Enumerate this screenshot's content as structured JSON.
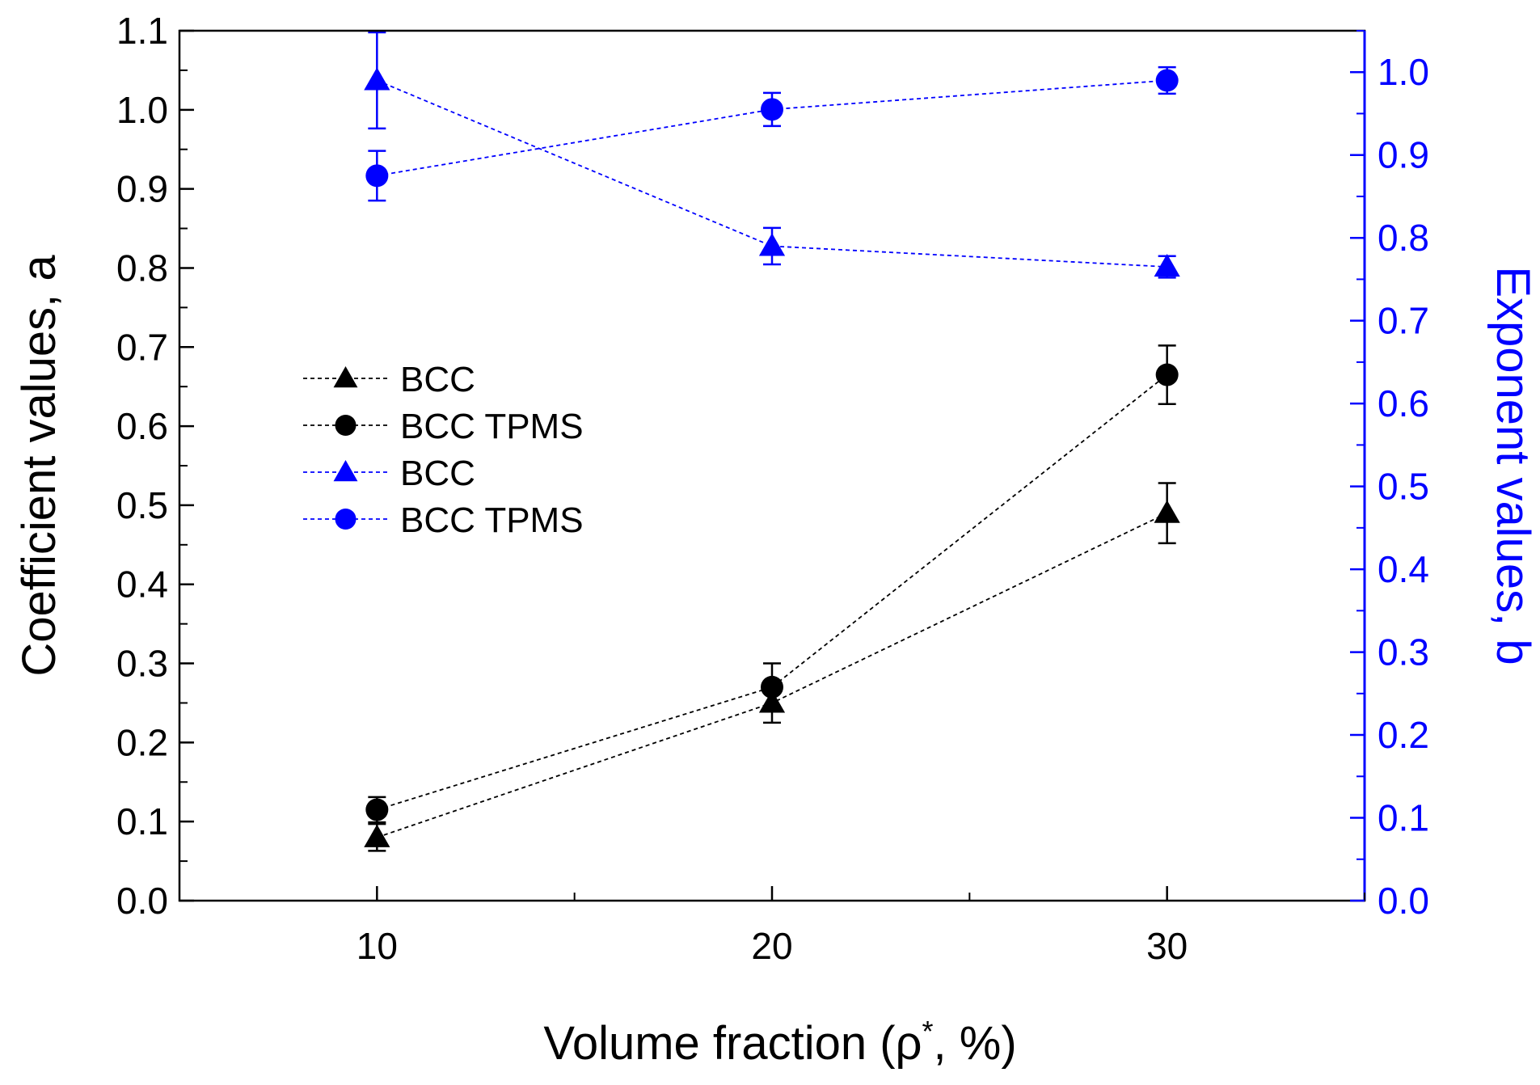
{
  "chart_data": {
    "type": "scatter",
    "title": "",
    "xlabel": "Volume fraction (ρ",
    "xlabel_superscript": "*",
    "xlabel_suffix": ", %)",
    "ylabel_left": "Coefficient values, a",
    "ylabel_right": "Exponent values, b",
    "xlim": [
      5,
      35
    ],
    "ylim_left": [
      0.0,
      1.1
    ],
    "ylim_right": [
      0.0,
      1.05
    ],
    "x_ticks": [
      10,
      20,
      30
    ],
    "x_tick_labels": [
      "10",
      "20",
      "30"
    ],
    "y_left_ticks": [
      0.0,
      0.1,
      0.2,
      0.3,
      0.4,
      0.5,
      0.6,
      0.7,
      0.8,
      0.9,
      1.0,
      1.1
    ],
    "y_left_tick_labels": [
      "0.0",
      "0.1",
      "0.2",
      "0.3",
      "0.4",
      "0.5",
      "0.6",
      "0.7",
      "0.8",
      "0.9",
      "1.0",
      "1.1"
    ],
    "y_right_ticks": [
      0.0,
      0.1,
      0.2,
      0.3,
      0.4,
      0.5,
      0.6,
      0.7,
      0.8,
      0.9,
      1.0
    ],
    "y_right_tick_labels": [
      "0.0",
      "0.1",
      "0.2",
      "0.3",
      "0.4",
      "0.5",
      "0.6",
      "0.7",
      "0.8",
      "0.9",
      "1.0"
    ],
    "grid": false,
    "legend_position": "center-left",
    "series": [
      {
        "name": "BCC",
        "axis": "left",
        "marker": "triangle",
        "color": "#000000",
        "x": [
          10,
          20,
          30
        ],
        "y": [
          0.08,
          0.25,
          0.49
        ],
        "err": [
          0.017,
          0.025,
          0.038
        ]
      },
      {
        "name": "BCC TPMS",
        "axis": "left",
        "marker": "circle",
        "color": "#000000",
        "x": [
          10,
          20,
          30
        ],
        "y": [
          0.115,
          0.27,
          0.665
        ],
        "err": [
          0.016,
          0.03,
          0.037
        ]
      },
      {
        "name": "BCC",
        "axis": "right",
        "marker": "triangle",
        "color": "#0000ff",
        "x": [
          10,
          20,
          30
        ],
        "y": [
          0.99,
          0.79,
          0.765
        ],
        "err": [
          0.058,
          0.022,
          0.013
        ]
      },
      {
        "name": "BCC TPMS",
        "axis": "right",
        "marker": "circle",
        "color": "#0000ff",
        "x": [
          10,
          20,
          30
        ],
        "y": [
          0.875,
          0.955,
          0.99
        ],
        "err": [
          0.03,
          0.02,
          0.016
        ]
      }
    ]
  }
}
